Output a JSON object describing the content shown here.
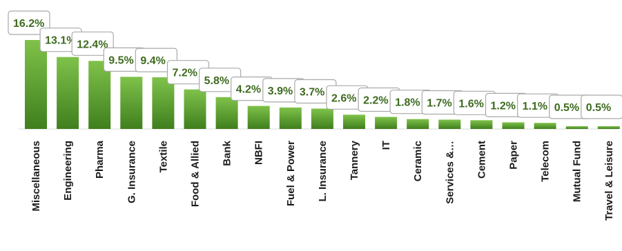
{
  "chart_data": {
    "type": "bar",
    "categories": [
      "Miscellaneous",
      "Engineering",
      "Pharma",
      "G. Insurance",
      "Textile",
      "Food & Allied",
      "Bank",
      "NBFI",
      "Fuel & Power",
      "L. Insurance",
      "Tannery",
      "IT",
      "Ceramic",
      "Services &…",
      "Cement",
      "Paper",
      "Telecom",
      "Mutual Fund",
      "Travel & Leisure"
    ],
    "values": [
      16.2,
      13.1,
      12.4,
      9.5,
      9.4,
      7.2,
      5.8,
      4.2,
      3.9,
      3.7,
      2.6,
      2.2,
      1.8,
      1.7,
      1.6,
      1.2,
      1.1,
      0.5,
      0.5
    ],
    "data_labels": [
      "16.2%",
      "13.1%",
      "12.4%",
      "9.5%",
      "9.4%",
      "7.2%",
      "5.8%",
      "4.2%",
      "3.9%",
      "3.7%",
      "2.6%",
      "2.2%",
      "1.8%",
      "1.7%",
      "1.6%",
      "1.2%",
      "1.1%",
      "0.5%",
      "0.5%"
    ],
    "unit": "%",
    "title": "",
    "xlabel": "",
    "ylabel": "",
    "ylim": [
      0,
      16.2
    ],
    "grid": false,
    "legend": "none",
    "colors": {
      "bar_top": "#7fc24a",
      "bar_bottom": "#3f7f1e",
      "label_text": "#3e6b1f",
      "axis": "#d9d9d9"
    }
  }
}
